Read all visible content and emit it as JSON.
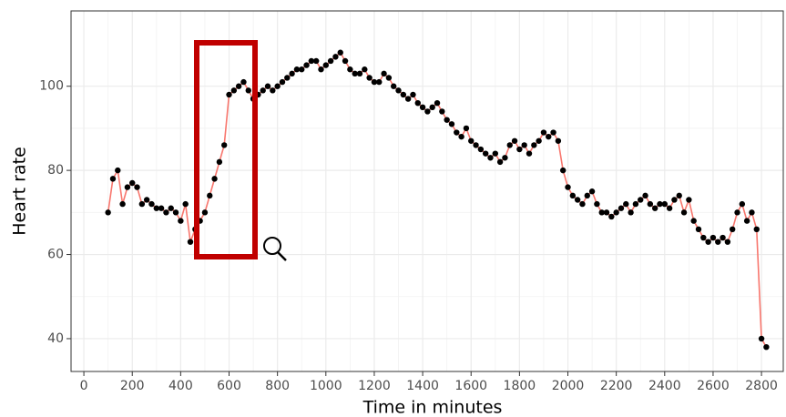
{
  "chart_data": {
    "type": "line",
    "xlabel": "Time in minutes",
    "ylabel": "Heart rate",
    "xlim": [
      -53,
      2890
    ],
    "ylim": [
      32.2,
      117.9
    ],
    "xticks": [
      0,
      200,
      400,
      600,
      800,
      1000,
      1200,
      1400,
      1600,
      1800,
      2000,
      2200,
      2400,
      2600,
      2800
    ],
    "yticks": [
      40,
      60,
      80,
      100
    ],
    "grid": true,
    "series": [
      {
        "color": "#f8766d",
        "marker_color": "#000000",
        "x": [
          100,
          120,
          140,
          160,
          180,
          200,
          220,
          240,
          260,
          280,
          300,
          320,
          340,
          360,
          380,
          400,
          420,
          440,
          460,
          480,
          500,
          520,
          540,
          560,
          580,
          600,
          620,
          640,
          660,
          680,
          700,
          720,
          740,
          760,
          780,
          800,
          820,
          840,
          860,
          880,
          900,
          920,
          940,
          960,
          980,
          1000,
          1020,
          1040,
          1060,
          1080,
          1100,
          1120,
          1140,
          1160,
          1180,
          1200,
          1220,
          1240,
          1260,
          1280,
          1300,
          1320,
          1340,
          1360,
          1380,
          1400,
          1420,
          1440,
          1460,
          1480,
          1500,
          1520,
          1540,
          1560,
          1580,
          1600,
          1620,
          1640,
          1660,
          1680,
          1700,
          1720,
          1740,
          1760,
          1780,
          1800,
          1820,
          1840,
          1860,
          1880,
          1900,
          1920,
          1940,
          1960,
          1980,
          2000,
          2020,
          2040,
          2060,
          2080,
          2100,
          2120,
          2140,
          2160,
          2180,
          2200,
          2220,
          2240,
          2260,
          2280,
          2300,
          2320,
          2340,
          2360,
          2380,
          2400,
          2420,
          2440,
          2460,
          2480,
          2500,
          2520,
          2540,
          2560,
          2580,
          2600,
          2620,
          2640,
          2660,
          2680,
          2700,
          2720,
          2740,
          2760,
          2780,
          2800,
          2820
        ],
        "values": [
          70,
          78,
          80,
          72,
          76,
          77,
          76,
          72,
          73,
          72,
          71,
          71,
          70,
          71,
          70,
          68,
          72,
          63,
          66,
          68,
          70,
          74,
          78,
          82,
          86,
          98,
          99,
          100,
          101,
          99,
          97,
          98,
          99,
          100,
          99,
          100,
          101,
          102,
          103,
          104,
          104,
          105,
          106,
          106,
          104,
          105,
          106,
          107,
          108,
          106,
          104,
          103,
          103,
          104,
          102,
          101,
          101,
          103,
          102,
          100,
          99,
          98,
          97,
          98,
          96,
          95,
          94,
          95,
          96,
          94,
          92,
          91,
          89,
          88,
          90,
          87,
          86,
          85,
          84,
          83,
          84,
          82,
          83,
          86,
          87,
          85,
          86,
          84,
          86,
          87,
          89,
          88,
          89,
          87,
          80,
          76,
          74,
          73,
          72,
          74,
          75,
          72,
          70,
          70,
          69,
          70,
          71,
          72,
          70,
          72,
          73,
          74,
          72,
          71,
          72,
          72,
          71,
          73,
          74,
          70,
          73,
          68,
          66,
          64,
          63,
          64,
          63,
          64,
          63,
          66,
          70,
          72,
          68,
          70,
          66,
          40,
          38
        ]
      }
    ]
  }
}
